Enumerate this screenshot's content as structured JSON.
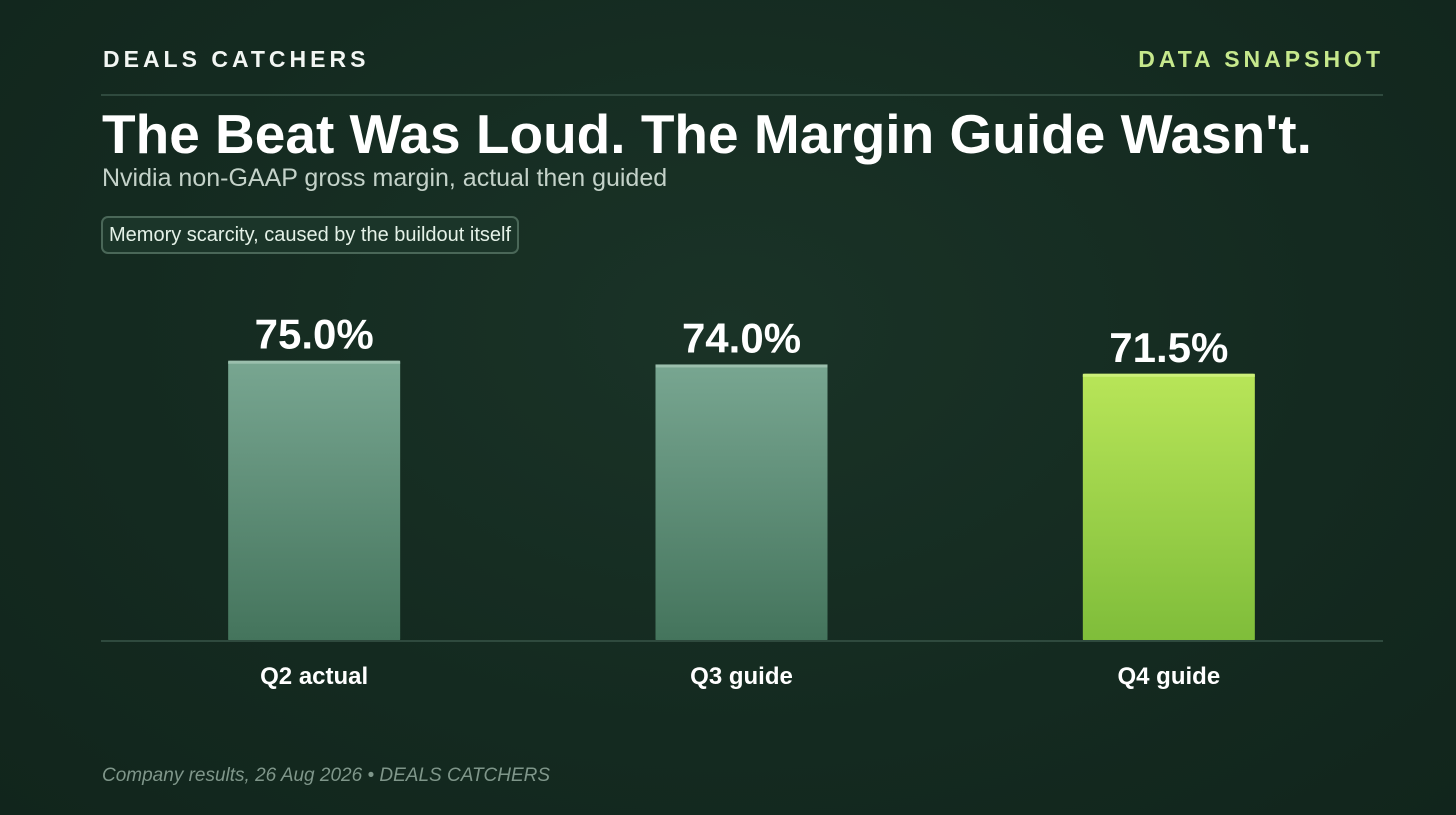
{
  "header": {
    "brand": "DEALS CATCHERS",
    "tag": "DATA SNAPSHOT"
  },
  "title": "The Beat Was Loud. The Margin Guide Wasn't.",
  "subtitle": "Nvidia non-GAAP gross margin, actual then guided",
  "callout": "Memory scarcity, caused by the buildout itself",
  "footer": {
    "source": "Company results, 26 Aug 2026 • DEALS CATCHERS"
  },
  "colors": {
    "background": "#142a20",
    "muted_bar": "#6fa08a",
    "highlight_bar": "#b6e356",
    "accent_text": "#c6e88c"
  },
  "chart_data": {
    "type": "bar",
    "categories": [
      "Q2 actual",
      "Q3 guide",
      "Q4 guide"
    ],
    "values": [
      75.0,
      74.0,
      71.5
    ],
    "labels": [
      "75.0%",
      "74.0%",
      "71.5%"
    ],
    "highlight": [
      false,
      false,
      true
    ],
    "title": "",
    "xlabel": "",
    "ylabel": "",
    "ylim": [
      0,
      77.6
    ],
    "grid": false
  }
}
